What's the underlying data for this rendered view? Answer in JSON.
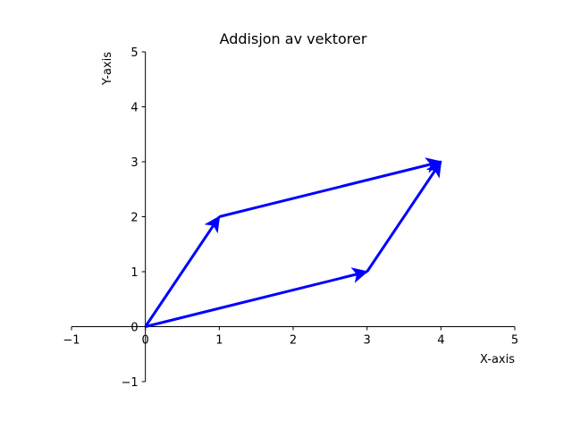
{
  "chart_data": {
    "type": "line",
    "title": "Addisjon av vektorer",
    "xlabel": "X-axis",
    "ylabel": "Y-axis",
    "xlim": [
      -1,
      5
    ],
    "ylim": [
      -1,
      5
    ],
    "xticks": [
      -1,
      0,
      1,
      2,
      3,
      4,
      5
    ],
    "yticks": [
      -1,
      0,
      1,
      2,
      3,
      4,
      5
    ],
    "xtick_labels": [
      "−1",
      "0",
      "1",
      "2",
      "3",
      "4",
      "5"
    ],
    "ytick_labels": [
      "−1",
      "0",
      "1",
      "2",
      "3",
      "4",
      "5"
    ],
    "grid": false,
    "spines": "centered at origin",
    "vector_color": "#0000ff",
    "vectors": [
      {
        "from": [
          0,
          0
        ],
        "to": [
          3,
          1
        ]
      },
      {
        "from": [
          0,
          0
        ],
        "to": [
          1,
          2
        ]
      },
      {
        "from": [
          1,
          2
        ],
        "to": [
          4,
          3
        ]
      },
      {
        "from": [
          3,
          1
        ],
        "to": [
          4,
          3
        ]
      }
    ]
  }
}
